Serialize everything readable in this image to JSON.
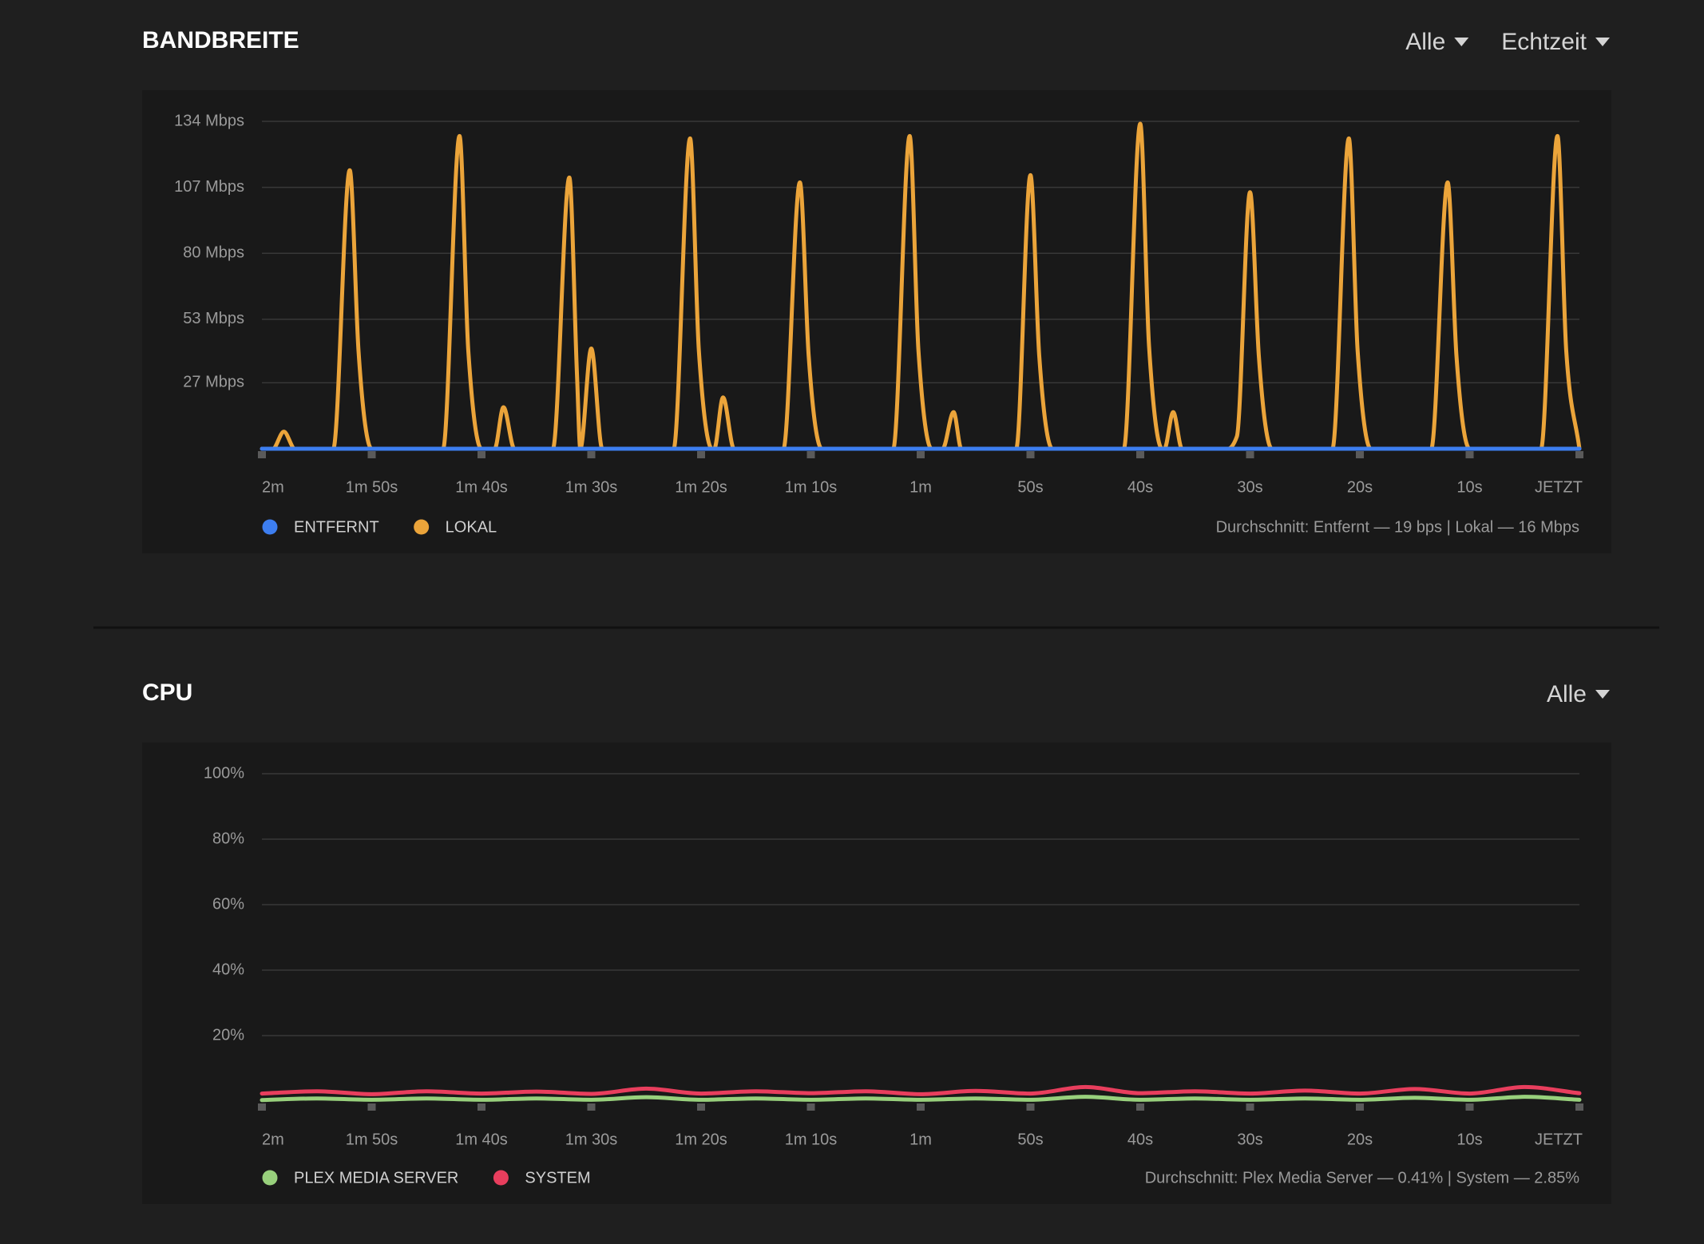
{
  "chart_data": [
    {
      "type": "line",
      "title": "BANDBREITE",
      "controls": [
        "Alle",
        "Echtzeit"
      ],
      "xlim": [
        120,
        0
      ],
      "xticks": [
        {
          "value": 120,
          "label": "2m"
        },
        {
          "value": 110,
          "label": "1m 50s"
        },
        {
          "value": 100,
          "label": "1m 40s"
        },
        {
          "value": 90,
          "label": "1m 30s"
        },
        {
          "value": 80,
          "label": "1m 20s"
        },
        {
          "value": 70,
          "label": "1m 10s"
        },
        {
          "value": 60,
          "label": "1m"
        },
        {
          "value": 50,
          "label": "50s"
        },
        {
          "value": 40,
          "label": "40s"
        },
        {
          "value": 30,
          "label": "30s"
        },
        {
          "value": 20,
          "label": "20s"
        },
        {
          "value": 10,
          "label": "10s"
        },
        {
          "value": 0,
          "label": "JETZT"
        }
      ],
      "ylim": [
        0,
        134
      ],
      "yticks": [
        {
          "value": 27,
          "label": "27 Mbps"
        },
        {
          "value": 53,
          "label": "53 Mbps"
        },
        {
          "value": 80,
          "label": "80 Mbps"
        },
        {
          "value": 107,
          "label": "107 Mbps"
        },
        {
          "value": 134,
          "label": "134 Mbps"
        }
      ],
      "grid": true,
      "legend": "bottom-left",
      "series": [
        {
          "name": "ENTFERNT",
          "color": "#3d7ef0",
          "x": [
            120,
            0
          ],
          "values": [
            0,
            0
          ]
        },
        {
          "name": "LOKAL",
          "color": "#eba43a",
          "x": [
            120,
            119,
            118,
            117,
            113.5,
            112,
            111.2,
            110,
            103.5,
            102,
            101.2,
            100,
            98.8,
            98,
            97,
            93.5,
            92,
            91.3,
            91,
            90,
            89,
            82.5,
            81,
            80.2,
            79,
            78.8,
            78,
            77,
            72.5,
            71,
            70.2,
            69,
            62.5,
            61,
            60.2,
            59,
            58,
            57,
            56.3,
            51.3,
            50,
            49.2,
            48,
            41.5,
            40,
            39.2,
            38,
            37.8,
            37,
            36.2,
            32,
            31.2,
            30,
            29.2,
            28,
            22.5,
            21,
            20.2,
            19,
            13.5,
            12,
            11.2,
            10,
            3.5,
            2,
            1.2,
            0
          ],
          "values": [
            0,
            0,
            7,
            0,
            0,
            114,
            40,
            0,
            0,
            128,
            40,
            0,
            0,
            17,
            0,
            0,
            111,
            30,
            0,
            41,
            0,
            0,
            127,
            40,
            0,
            0,
            21,
            0,
            0,
            109,
            38,
            0,
            0,
            128,
            40,
            0,
            0,
            15,
            0,
            0,
            112,
            38,
            0,
            0,
            133,
            42,
            0,
            0,
            15,
            0,
            0,
            5,
            105,
            38,
            0,
            0,
            127,
            40,
            0,
            0,
            109,
            38,
            0,
            0,
            128,
            40,
            0
          ]
        }
      ],
      "summary": "Durchschnitt: Entfernt — 19 bps | Lokal — 16 Mbps"
    },
    {
      "type": "line",
      "title": "CPU",
      "controls": [
        "Alle"
      ],
      "xlim": [
        120,
        0
      ],
      "xticks": [
        {
          "value": 120,
          "label": "2m"
        },
        {
          "value": 110,
          "label": "1m 50s"
        },
        {
          "value": 100,
          "label": "1m 40s"
        },
        {
          "value": 90,
          "label": "1m 30s"
        },
        {
          "value": 80,
          "label": "1m 20s"
        },
        {
          "value": 70,
          "label": "1m 10s"
        },
        {
          "value": 60,
          "label": "1m"
        },
        {
          "value": 50,
          "label": "50s"
        },
        {
          "value": 40,
          "label": "40s"
        },
        {
          "value": 30,
          "label": "30s"
        },
        {
          "value": 20,
          "label": "20s"
        },
        {
          "value": 10,
          "label": "10s"
        },
        {
          "value": 0,
          "label": "JETZT"
        }
      ],
      "ylim": [
        0,
        100
      ],
      "yticks": [
        {
          "value": 20,
          "label": "20%"
        },
        {
          "value": 40,
          "label": "40%"
        },
        {
          "value": 60,
          "label": "60%"
        },
        {
          "value": 80,
          "label": "80%"
        },
        {
          "value": 100,
          "label": "100%"
        }
      ],
      "grid": true,
      "legend": "bottom-left",
      "series": [
        {
          "name": "PLEX MEDIA SERVER",
          "color": "#98d07c",
          "x": [
            120,
            115,
            110,
            105,
            100,
            95,
            90,
            85,
            80,
            75,
            70,
            65,
            60,
            55,
            50,
            45,
            40,
            35,
            30,
            25,
            20,
            15,
            10,
            5,
            0
          ],
          "values": [
            0.3,
            0.8,
            0.4,
            0.8,
            0.4,
            0.8,
            0.4,
            1.2,
            0.4,
            0.8,
            0.4,
            0.8,
            0.4,
            0.8,
            0.4,
            1.3,
            0.4,
            0.8,
            0.4,
            0.8,
            0.4,
            1.0,
            0.4,
            1.3,
            0.4
          ]
        },
        {
          "name": "SYSTEM",
          "color": "#e83e5d",
          "x": [
            120,
            115,
            110,
            105,
            100,
            95,
            90,
            85,
            80,
            75,
            70,
            65,
            60,
            55,
            50,
            45,
            40,
            35,
            30,
            25,
            20,
            15,
            10,
            5,
            0
          ],
          "values": [
            2.3,
            3.0,
            2.1,
            3.0,
            2.3,
            2.9,
            2.2,
            3.8,
            2.3,
            3.0,
            2.4,
            3.0,
            2.1,
            3.1,
            2.3,
            4.3,
            2.4,
            3.0,
            2.3,
            3.2,
            2.3,
            3.7,
            2.3,
            4.3,
            2.4
          ]
        }
      ],
      "summary": "Durchschnitt: Plex Media Server — 0.41% | System — 2.85%"
    }
  ]
}
